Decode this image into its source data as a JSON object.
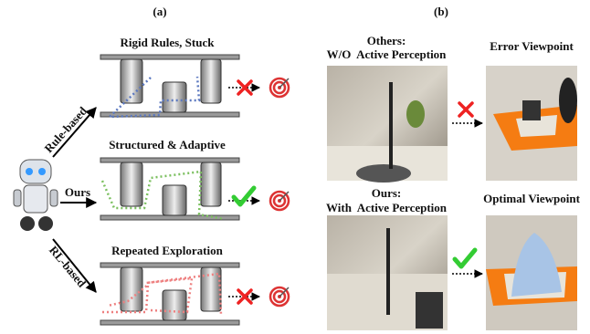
{
  "panel_a": {
    "label": "(a)",
    "rows": [
      {
        "title": "Rigid Rules, Stuck",
        "method": "Rule-based"
      },
      {
        "title": "Structured & Adaptive",
        "method": "Ours"
      },
      {
        "title": "Repeated Exploration",
        "method": "RL-based"
      }
    ]
  },
  "panel_b": {
    "label": "(b)",
    "top": {
      "group": "Others:",
      "setting": "W/O  Active Perception",
      "result": "Error Viewpoint"
    },
    "bottom": {
      "group": "Ours:",
      "setting": "With  Active Perception",
      "result": "Optimal Viewpoint"
    }
  }
}
